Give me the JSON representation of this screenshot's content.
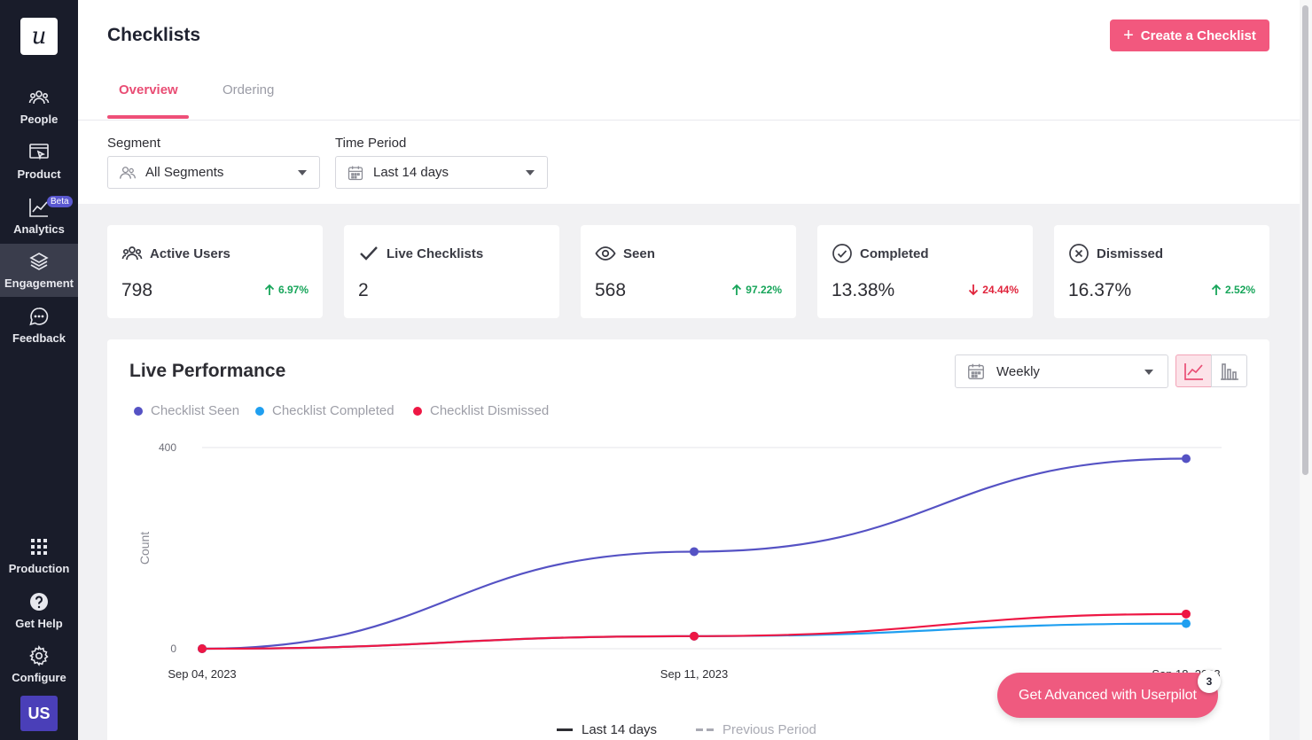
{
  "sidebar": {
    "logo": "u",
    "items": [
      {
        "label": "People",
        "icon": "people-icon"
      },
      {
        "label": "Product",
        "icon": "product-icon"
      },
      {
        "label": "Analytics",
        "icon": "analytics-icon",
        "badge": "Beta"
      },
      {
        "label": "Engagement",
        "icon": "layers-icon",
        "active": true
      },
      {
        "label": "Feedback",
        "icon": "chat-bubble-icon"
      }
    ],
    "bottom_items": [
      {
        "label": "Production",
        "icon": "grid-icon"
      },
      {
        "label": "Get Help",
        "icon": "help-icon"
      },
      {
        "label": "Configure",
        "icon": "gear-icon"
      }
    ],
    "avatar": "US"
  },
  "header": {
    "title": "Checklists",
    "create_button": "Create a Checklist",
    "tabs": [
      {
        "label": "Overview",
        "active": true
      },
      {
        "label": "Ordering",
        "active": false
      }
    ]
  },
  "filters": {
    "segment_label": "Segment",
    "segment_value": "All Segments",
    "period_label": "Time Period",
    "period_value": "Last 14 days"
  },
  "stats": [
    {
      "label": "Active Users",
      "icon": "people-icon",
      "value": "798",
      "trend": "6.97%",
      "direction": "up"
    },
    {
      "label": "Live Checklists",
      "icon": "checkmark-icon",
      "value": "2",
      "trend": "",
      "direction": ""
    },
    {
      "label": "Seen",
      "icon": "eye-icon",
      "value": "568",
      "trend": "97.22%",
      "direction": "up"
    },
    {
      "label": "Completed",
      "icon": "check-circle-icon",
      "value": "13.38%",
      "trend": "24.44%",
      "direction": "down"
    },
    {
      "label": "Dismissed",
      "icon": "x-circle-icon",
      "value": "16.37%",
      "trend": "2.52%",
      "direction": "up"
    }
  ],
  "performance": {
    "title": "Live Performance",
    "interval": "Weekly",
    "legend": [
      "Checklist Seen",
      "Checklist Completed",
      "Checklist Dismissed"
    ],
    "bottom_legend": [
      "Last 14 days",
      "Previous Period"
    ]
  },
  "colors": {
    "accent": "#ef5a7f",
    "sidebar": "#191c2a",
    "seen": "#5552c4",
    "completed": "#1f9ff0",
    "dismissed": "#ee1744",
    "trend_up": "#17a55a",
    "trend_down": "#e0243c"
  },
  "chart_data": {
    "type": "line",
    "x": [
      "Sep 04, 2023",
      "Sep 11, 2023",
      "Sep 18, 2023"
    ],
    "series": [
      {
        "name": "Checklist Seen",
        "values": [
          0,
          193,
          378
        ]
      },
      {
        "name": "Checklist Completed",
        "values": [
          0,
          25,
          50
        ]
      },
      {
        "name": "Checklist Dismissed",
        "values": [
          0,
          25,
          69
        ]
      }
    ],
    "ylabel": "Count",
    "y_ticks": [
      0,
      400
    ],
    "ylim": [
      0,
      400
    ],
    "grid": true
  },
  "promo": {
    "label": "Get Advanced with Userpilot",
    "badge": "3"
  }
}
